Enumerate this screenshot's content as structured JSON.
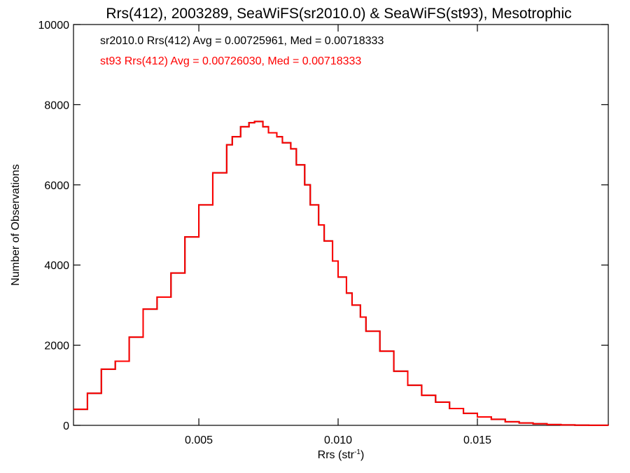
{
  "chart_data": {
    "type": "line",
    "title": "Rrs(412), 2003289, SeaWiFS(sr2010.0) & SeaWiFS(st93), Mesotrophic",
    "xlabel": "Rrs (str",
    "xlabel_sup": "-1",
    "xlabel_close": ")",
    "ylabel": "Number of Observations",
    "xlim": [
      0.0005,
      0.0197
    ],
    "ylim": [
      0,
      10000
    ],
    "x_ticks": [
      0.005,
      0.01,
      0.015
    ],
    "x_tick_labels": [
      "0.005",
      "0.010",
      "0.015"
    ],
    "y_ticks": [
      0,
      2000,
      4000,
      6000,
      8000,
      10000
    ],
    "y_tick_labels": [
      "0",
      "2000",
      "4000",
      "6000",
      "8000",
      "10000"
    ],
    "grid": false,
    "legend_position": "top-left",
    "annotations": [
      {
        "text": "sr2010.0 Rrs(412) Avg = 0.00725961, Med = 0.00718333",
        "color": "#000000"
      },
      {
        "text": "st93 Rrs(412) Avg = 0.00726030, Med = 0.00718333",
        "color": "#ff0000"
      }
    ],
    "series": [
      {
        "color": "#000000",
        "x": [
          0.0005,
          0.001,
          0.0015,
          0.002,
          0.0025,
          0.003,
          0.0035,
          0.004,
          0.0045,
          0.005,
          0.0055,
          0.006,
          0.0062,
          0.0065,
          0.0068,
          0.007,
          0.0073,
          0.0075,
          0.0078,
          0.008,
          0.0083,
          0.0085,
          0.0088,
          0.009,
          0.0093,
          0.0095,
          0.0098,
          0.01,
          0.0103,
          0.0105,
          0.0108,
          0.011,
          0.0115,
          0.012,
          0.0125,
          0.013,
          0.0135,
          0.014,
          0.0145,
          0.015,
          0.0155,
          0.016,
          0.0165,
          0.017,
          0.0175,
          0.018,
          0.0185,
          0.019,
          0.0197
        ],
        "y": [
          400,
          800,
          1400,
          1600,
          2200,
          2900,
          3200,
          3800,
          4700,
          5500,
          6300,
          7000,
          7200,
          7450,
          7550,
          7580,
          7450,
          7300,
          7200,
          7050,
          6900,
          6500,
          6000,
          5500,
          5000,
          4600,
          4100,
          3700,
          3300,
          3000,
          2700,
          2350,
          1850,
          1350,
          1000,
          750,
          580,
          420,
          300,
          210,
          150,
          90,
          60,
          40,
          20,
          10,
          5,
          2,
          0
        ]
      },
      {
        "color": "#ff0000",
        "x": [
          0.0005,
          0.001,
          0.0015,
          0.002,
          0.0025,
          0.003,
          0.0035,
          0.004,
          0.0045,
          0.005,
          0.0055,
          0.006,
          0.0062,
          0.0065,
          0.0068,
          0.007,
          0.0073,
          0.0075,
          0.0078,
          0.008,
          0.0083,
          0.0085,
          0.0088,
          0.009,
          0.0093,
          0.0095,
          0.0098,
          0.01,
          0.0103,
          0.0105,
          0.0108,
          0.011,
          0.0115,
          0.012,
          0.0125,
          0.013,
          0.0135,
          0.014,
          0.0145,
          0.015,
          0.0155,
          0.016,
          0.0165,
          0.017,
          0.0175,
          0.018,
          0.0185,
          0.019,
          0.0197
        ],
        "y": [
          400,
          800,
          1400,
          1600,
          2200,
          2900,
          3200,
          3800,
          4700,
          5500,
          6300,
          7000,
          7200,
          7450,
          7550,
          7580,
          7450,
          7300,
          7200,
          7050,
          6900,
          6500,
          6000,
          5500,
          5000,
          4600,
          4100,
          3700,
          3300,
          3000,
          2700,
          2350,
          1850,
          1350,
          1000,
          750,
          580,
          420,
          300,
          210,
          150,
          90,
          60,
          40,
          20,
          10,
          5,
          2,
          0
        ]
      }
    ]
  }
}
